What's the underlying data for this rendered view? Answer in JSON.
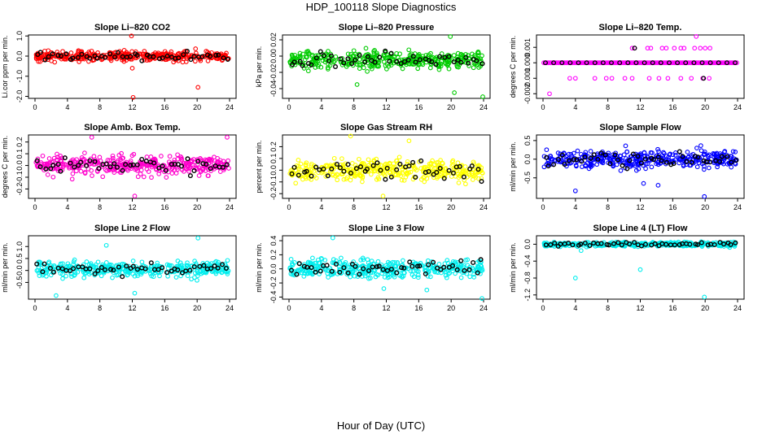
{
  "figure": {
    "title": "HDP_100118  Slope Diagnostics",
    "xlabel": "Hour of Day (UTC)"
  },
  "colors": {
    "axis": "#000000",
    "highlight": "#000000"
  },
  "chart_data": [
    {
      "type": "scatter",
      "title": "Slope Li–820 CO2",
      "ylabel": "Li.cor ppm per min.",
      "color": "#ff0000",
      "xlim": [
        0,
        24
      ],
      "xticks": [
        0,
        4,
        8,
        12,
        16,
        20,
        24
      ],
      "ylim": [
        -2.1,
        1.05
      ],
      "yticks": [
        -2.0,
        -1.0,
        0.0,
        1.0
      ],
      "ytick_labels": [
        "-2.0",
        "-1.0",
        "0.0",
        "1.0"
      ],
      "band": {
        "center": 0.0,
        "spread": 0.22,
        "count": 380
      },
      "highlight_count": 48,
      "outliers": [
        [
          11.9,
          1.0
        ],
        [
          12.0,
          -0.6
        ],
        [
          20.1,
          -1.55
        ],
        [
          12.1,
          -2.05
        ]
      ]
    },
    {
      "type": "scatter",
      "title": "Slope Li–820 Pressure",
      "ylabel": "kPa per min.",
      "color": "#00cc00",
      "xlim": [
        0,
        24
      ],
      "xticks": [
        0,
        4,
        8,
        12,
        16,
        20,
        24
      ],
      "ylim": [
        -0.052,
        0.026
      ],
      "yticks": [
        -0.04,
        -0.02,
        0.0,
        0.02
      ],
      "ytick_labels": [
        "-0.04",
        "-0.02",
        "0.00",
        "0.02"
      ],
      "band": {
        "center": -0.005,
        "spread": 0.009,
        "count": 380
      },
      "highlight_count": 48,
      "outliers": [
        [
          19.9,
          0.024
        ],
        [
          23.9,
          -0.05
        ],
        [
          8.4,
          -0.035
        ],
        [
          20.4,
          -0.045
        ]
      ]
    },
    {
      "type": "scatter",
      "title": "Slope Li–820 Temp.",
      "ylabel": "degrees C per min.",
      "color": "#ff00ff",
      "xlim": [
        0,
        24
      ],
      "xticks": [
        0,
        4,
        8,
        12,
        16,
        20,
        24
      ],
      "ylim": [
        -0.0023,
        0.0018
      ],
      "yticks": [
        -0.002,
        -0.001,
        0.0,
        0.001
      ],
      "ytick_labels": [
        "-0.002",
        "-0.001",
        "0.000",
        "0.001"
      ],
      "levels": [
        0.0,
        0.00095,
        -0.001
      ],
      "level_x_upper": [
        11.0,
        11.3,
        12.9,
        13.3,
        14.7,
        15.2,
        16.2,
        17.0,
        17.4,
        18.7,
        19.4,
        20.0,
        20.6
      ],
      "level_x_lower": [
        3.3,
        4.0,
        6.4,
        7.8,
        8.5,
        10.1,
        11.0,
        13.1,
        14.3,
        15.4,
        17.0,
        18.3,
        19.7,
        20.5
      ],
      "highlight_count": 24,
      "outliers": [
        [
          18.9,
          0.0017
        ],
        [
          0.8,
          -0.002
        ]
      ]
    },
    {
      "type": "scatter",
      "title": "Slope Amb. Box Temp.",
      "ylabel": "degrees C per min.",
      "color": "#ff00cc",
      "xlim": [
        0,
        24
      ],
      "xticks": [
        0,
        4,
        8,
        12,
        16,
        20,
        24
      ],
      "ylim": [
        -0.28,
        0.26
      ],
      "yticks": [
        -0.2,
        -0.1,
        0.0,
        0.1,
        0.2
      ],
      "ytick_labels": [
        "-0.2",
        "-0.1",
        "0.0",
        "0.1",
        "0.2"
      ],
      "band": {
        "center": 0.0,
        "spread": 0.07,
        "count": 380
      },
      "highlight_count": 48,
      "outliers": [
        [
          12.3,
          -0.26
        ],
        [
          7.0,
          0.24
        ],
        [
          23.7,
          0.24
        ]
      ]
    },
    {
      "type": "scatter",
      "title": "Slope Gas Stream RH",
      "ylabel": "percent per min.",
      "color": "#ffff00",
      "xlim": [
        0,
        24
      ],
      "xticks": [
        0,
        4,
        8,
        12,
        16,
        20,
        24
      ],
      "ylim": [
        -0.24,
        0.3
      ],
      "yticks": [
        -0.2,
        -0.1,
        0.0,
        0.1,
        0.2
      ],
      "ytick_labels": [
        "-0.2",
        "-0.1",
        "0.0",
        "0.1",
        "0.2"
      ],
      "band": {
        "center": 0.0,
        "spread": 0.08,
        "count": 380
      },
      "highlight_count": 48,
      "outliers": [
        [
          7.6,
          0.29
        ],
        [
          11.6,
          -0.22
        ],
        [
          14.8,
          0.25
        ]
      ]
    },
    {
      "type": "scatter",
      "title": "Slope Sample Flow",
      "ylabel": "ml/min per min.",
      "color": "#0000ff",
      "xlim": [
        0,
        24
      ],
      "xticks": [
        0,
        4,
        8,
        12,
        16,
        20,
        24
      ],
      "ylim": [
        -1.05,
        0.65
      ],
      "yticks": [
        -0.5,
        0.0,
        0.5
      ],
      "ytick_labels": [
        "-0.5",
        "0.0",
        "0.5"
      ],
      "band": {
        "center": 0.0,
        "spread": 0.22,
        "count": 380
      },
      "highlight_count": 48,
      "outliers": [
        [
          19.9,
          -1.0
        ],
        [
          4.0,
          -0.85
        ],
        [
          12.4,
          -0.65
        ],
        [
          14.2,
          -0.7
        ]
      ]
    },
    {
      "type": "scatter",
      "title": "Slope Line 2 Flow",
      "ylabel": "ml/min per min.",
      "color": "#00eeee",
      "xlim": [
        0,
        24
      ],
      "xticks": [
        0,
        4,
        8,
        12,
        16,
        20,
        24
      ],
      "ylim": [
        -1.2,
        1.45
      ],
      "yticks": [
        -0.5,
        0.0,
        0.5,
        1.0
      ],
      "ytick_labels": [
        "-0.5",
        "0.0",
        "0.5",
        "1.0"
      ],
      "band": {
        "center": 0.05,
        "spread": 0.28,
        "count": 380
      },
      "highlight_count": 48,
      "outliers": [
        [
          20.1,
          1.35
        ],
        [
          8.8,
          1.05
        ],
        [
          12.3,
          -0.95
        ],
        [
          2.6,
          -1.05
        ]
      ]
    },
    {
      "type": "scatter",
      "title": "Slope Line 3 Flow",
      "ylabel": "ml/min per min.",
      "color": "#00eeee",
      "xlim": [
        0,
        24
      ],
      "xticks": [
        0,
        4,
        8,
        12,
        16,
        20,
        24
      ],
      "ylim": [
        -0.43,
        0.47
      ],
      "yticks": [
        -0.4,
        -0.2,
        0.0,
        0.2,
        0.4
      ],
      "ytick_labels": [
        "-0.4",
        "-0.2",
        "0.0",
        "0.2",
        "0.4"
      ],
      "band": {
        "center": 0.0,
        "spread": 0.11,
        "count": 380
      },
      "highlight_count": 48,
      "outliers": [
        [
          23.8,
          -0.42
        ],
        [
          5.4,
          0.44
        ],
        [
          17.0,
          -0.3
        ],
        [
          11.7,
          -0.28
        ]
      ]
    },
    {
      "type": "scatter",
      "title": "Slope Line 4 (LT) Flow",
      "ylabel": "ml/min per min.",
      "color": "#00eeee",
      "xlim": [
        0,
        24
      ],
      "xticks": [
        0,
        4,
        8,
        12,
        16,
        20,
        24
      ],
      "ylim": [
        -1.3,
        0.2
      ],
      "yticks": [
        -1.2,
        -0.8,
        -0.4,
        0.0
      ],
      "ytick_labels": [
        "-1.2",
        "-0.8",
        "-0.4",
        "0.0"
      ],
      "band": {
        "center": 0.0,
        "spread": 0.045,
        "count": 380
      },
      "highlight_count": 48,
      "outliers": [
        [
          19.9,
          -1.25
        ],
        [
          4.0,
          -0.8
        ],
        [
          12.0,
          -0.6
        ],
        [
          4.7,
          -0.15
        ]
      ]
    }
  ]
}
